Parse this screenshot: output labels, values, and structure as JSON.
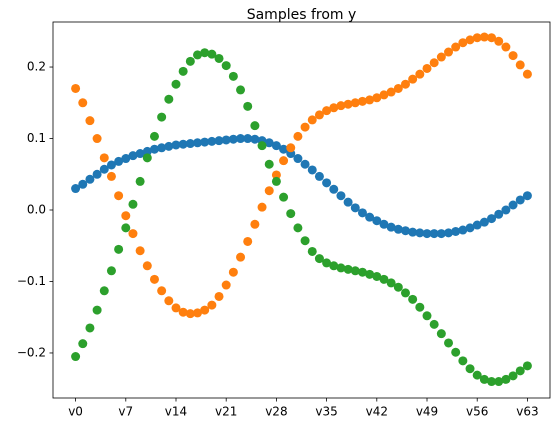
{
  "chart_data": {
    "type": "scatter",
    "title": "Samples from y",
    "categories": [
      "v0",
      null,
      null,
      null,
      null,
      null,
      null,
      "v7",
      null,
      null,
      null,
      null,
      null,
      null,
      "v14",
      null,
      null,
      null,
      null,
      null,
      null,
      "v21",
      null,
      null,
      null,
      null,
      null,
      null,
      "v28",
      null,
      null,
      null,
      null,
      null,
      null,
      "v35",
      null,
      null,
      null,
      null,
      null,
      null,
      "v42",
      null,
      null,
      null,
      null,
      null,
      null,
      "v49",
      null,
      null,
      null,
      null,
      null,
      null,
      "v56",
      null,
      null,
      null,
      null,
      null,
      null,
      "v63"
    ],
    "series": [
      {
        "color": "#1f77b4",
        "values": [
          0.03,
          0.036,
          0.043,
          0.05,
          0.057,
          0.063,
          0.068,
          0.072,
          0.076,
          0.079,
          0.082,
          0.085,
          0.087,
          0.089,
          0.091,
          0.092,
          0.093,
          0.094,
          0.095,
          0.096,
          0.097,
          0.098,
          0.099,
          0.1,
          0.1,
          0.099,
          0.097,
          0.094,
          0.09,
          0.085,
          0.079,
          0.072,
          0.064,
          0.056,
          0.047,
          0.038,
          0.029,
          0.02,
          0.011,
          0.003,
          -0.004,
          -0.01,
          -0.015,
          -0.02,
          -0.024,
          -0.027,
          -0.029,
          -0.031,
          -0.032,
          -0.033,
          -0.033,
          -0.033,
          -0.032,
          -0.03,
          -0.028,
          -0.025,
          -0.021,
          -0.017,
          -0.012,
          -0.006,
          0.0,
          0.007,
          0.014,
          0.02
        ]
      },
      {
        "color": "#ff7f0e",
        "values": [
          0.17,
          0.15,
          0.125,
          0.1,
          0.073,
          0.047,
          0.02,
          -0.008,
          -0.033,
          -0.057,
          -0.078,
          -0.097,
          -0.113,
          -0.127,
          -0.137,
          -0.143,
          -0.145,
          -0.144,
          -0.14,
          -0.133,
          -0.121,
          -0.105,
          -0.087,
          -0.066,
          -0.044,
          -0.02,
          0.004,
          0.027,
          0.049,
          0.069,
          0.087,
          0.103,
          0.116,
          0.126,
          0.133,
          0.139,
          0.143,
          0.146,
          0.148,
          0.15,
          0.152,
          0.154,
          0.157,
          0.161,
          0.165,
          0.17,
          0.176,
          0.183,
          0.19,
          0.198,
          0.206,
          0.214,
          0.221,
          0.228,
          0.234,
          0.238,
          0.241,
          0.242,
          0.241,
          0.236,
          0.228,
          0.216,
          0.203,
          0.19
        ]
      },
      {
        "color": "#2ca02c",
        "values": [
          -0.205,
          -0.187,
          -0.165,
          -0.14,
          -0.113,
          -0.085,
          -0.055,
          -0.025,
          0.008,
          0.04,
          0.073,
          0.103,
          0.13,
          0.155,
          0.176,
          0.194,
          0.208,
          0.217,
          0.22,
          0.218,
          0.212,
          0.202,
          0.187,
          0.168,
          0.145,
          0.118,
          0.09,
          0.064,
          0.04,
          0.018,
          -0.005,
          -0.025,
          -0.043,
          -0.058,
          -0.068,
          -0.074,
          -0.078,
          -0.081,
          -0.083,
          -0.085,
          -0.087,
          -0.09,
          -0.093,
          -0.097,
          -0.102,
          -0.108,
          -0.116,
          -0.125,
          -0.136,
          -0.148,
          -0.16,
          -0.173,
          -0.186,
          -0.199,
          -0.211,
          -0.222,
          -0.231,
          -0.237,
          -0.24,
          -0.24,
          -0.237,
          -0.232,
          -0.225,
          -0.218
        ]
      }
    ],
    "ylim": [
      -0.263,
      0.263
    ],
    "yticks": [
      {
        "value": -0.2,
        "label": "−0.2"
      },
      {
        "value": -0.1,
        "label": "−0.1"
      },
      {
        "value": 0,
        "label": "0.0"
      },
      0.1,
      0.2
    ],
    "grid": false
  }
}
